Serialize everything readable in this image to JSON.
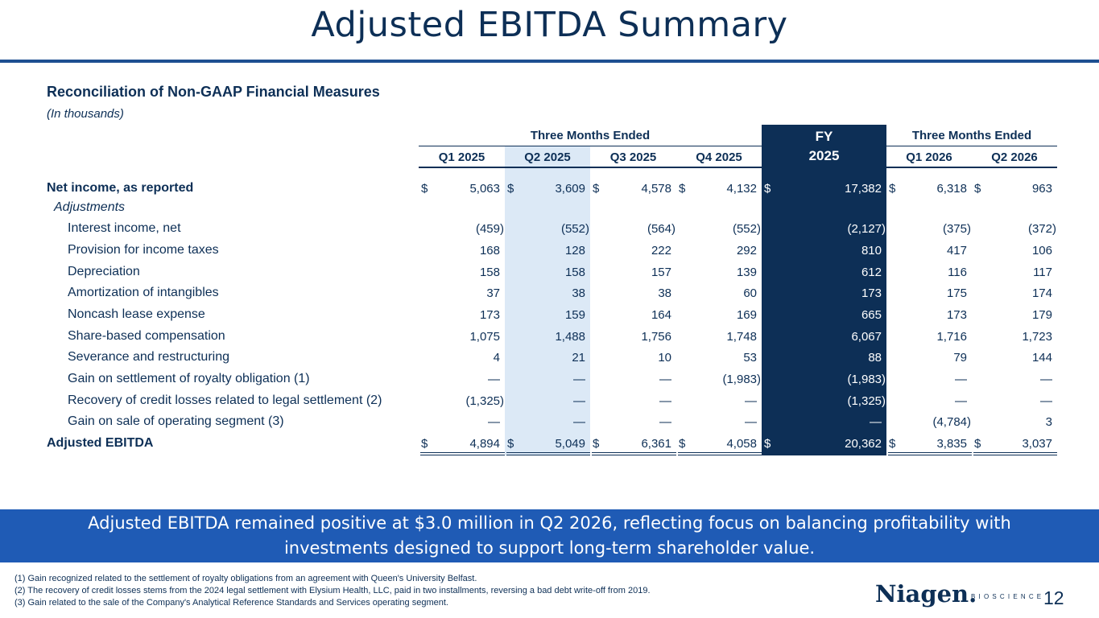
{
  "title": "Adjusted EBITDA Summary",
  "section": {
    "title": "Reconciliation of Non-GAAP Financial Measures",
    "subtitle": "(In thousands)"
  },
  "table": {
    "group_left": "Three Months Ended",
    "group_right": "Three Months Ended",
    "fy_line1": "FY",
    "fy_line2": "2025",
    "columns": [
      "Q1 2025",
      "Q2 2025",
      "Q3 2025",
      "Q4 2025",
      "",
      "Q1 2026",
      "Q2 2026"
    ],
    "dollar_sign": "$",
    "rows": [
      {
        "label": "Net income, as reported",
        "values": [
          "5,063",
          "3,609",
          "4,578",
          "4,132",
          "17,382",
          "6,318",
          "963"
        ]
      },
      {
        "label": "Adjustments",
        "values": [
          "",
          "",
          "",
          "",
          "",
          "",
          ""
        ]
      },
      {
        "label": "Interest income, net",
        "values": [
          "(459)",
          "(552)",
          "(564)",
          "(552)",
          "(2,127)",
          "(375)",
          "(372)"
        ]
      },
      {
        "label": "Provision for income taxes",
        "values": [
          "168",
          "128",
          "222",
          "292",
          "810",
          "417",
          "106"
        ]
      },
      {
        "label": "Depreciation",
        "values": [
          "158",
          "158",
          "157",
          "139",
          "612",
          "116",
          "117"
        ]
      },
      {
        "label": "Amortization of intangibles",
        "values": [
          "37",
          "38",
          "38",
          "60",
          "173",
          "175",
          "174"
        ]
      },
      {
        "label": "Noncash lease expense",
        "values": [
          "173",
          "159",
          "164",
          "169",
          "665",
          "173",
          "179"
        ]
      },
      {
        "label": "Share-based compensation",
        "values": [
          "1,075",
          "1,488",
          "1,756",
          "1,748",
          "6,067",
          "1,716",
          "1,723"
        ]
      },
      {
        "label": "Severance and restructuring",
        "values": [
          "4",
          "21",
          "10",
          "53",
          "88",
          "79",
          "144"
        ]
      },
      {
        "label": "Gain on settlement of royalty obligation (1)",
        "values": [
          "—",
          "—",
          "—",
          "(1,983)",
          "(1,983)",
          "—",
          "—"
        ]
      },
      {
        "label": "Recovery of credit losses related to legal settlement (2)",
        "values": [
          "(1,325)",
          "—",
          "—",
          "—",
          "(1,325)",
          "—",
          "—"
        ]
      },
      {
        "label": "Gain on sale of operating segment (3)",
        "values": [
          "—",
          "—",
          "—",
          "—",
          "—",
          "(4,784)",
          "3"
        ]
      },
      {
        "label": "Adjusted EBITDA",
        "values": [
          "4,894",
          "5,049",
          "6,361",
          "4,058",
          "20,362",
          "3,835",
          "3,037"
        ]
      }
    ]
  },
  "banner": {
    "line1": "Adjusted EBITDA remained positive at $3.0 million in Q2 2026, reflecting focus on balancing profitability with",
    "line2": "investments designed to support long-term shareholder value."
  },
  "footnotes": [
    "(1) Gain recognized related to the settlement of royalty obligations from an agreement with Queen's University Belfast.",
    "(2) The recovery of credit losses stems from the 2024 legal settlement with Elysium Health, LLC, paid in two installments, reversing a bad debt write-off from 2019.",
    "(3) Gain related to the sale of the Company's Analytical Reference Standards and Services operating segment."
  ],
  "logo": {
    "name": "Niagen.",
    "sub": "BIOSCIENCE"
  },
  "page_number": "12",
  "colors": {
    "navy": "#0d2f56",
    "banner_blue": "#1f5bb5",
    "q2_highlight": "#dce9f6"
  }
}
